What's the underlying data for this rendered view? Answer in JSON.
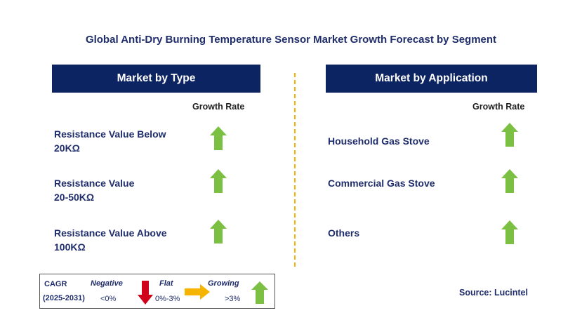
{
  "title": "Global Anti-Dry Burning Temperature Sensor Market Growth Forecast by Segment",
  "left_panel": {
    "header": "Market by Type",
    "growth_label": "Growth Rate",
    "items": [
      {
        "label_line1": "Resistance Value Below",
        "label_line2": "20KΩ",
        "trend": "growing"
      },
      {
        "label_line1": "Resistance Value",
        "label_line2": "20-50KΩ",
        "trend": "growing"
      },
      {
        "label_line1": "Resistance Value Above",
        "label_line2": "100KΩ",
        "trend": "growing"
      }
    ]
  },
  "right_panel": {
    "header": "Market by Application",
    "growth_label": "Growth Rate",
    "items": [
      {
        "label": "Household Gas Stove",
        "trend": "growing"
      },
      {
        "label": "Commercial Gas Stove",
        "trend": "growing"
      },
      {
        "label": "Others",
        "trend": "growing"
      }
    ]
  },
  "legend": {
    "cagr": "CAGR",
    "period": "(2025-2031)",
    "negative_label": "Negative",
    "negative_range": "<0%",
    "flat_label": "Flat",
    "flat_range": "0%-3%",
    "growing_label": "Growing",
    "growing_range": ">3%"
  },
  "source": "Source: Lucintel",
  "colors": {
    "header_bg": "#0d2462",
    "growing": "#7cc043",
    "negative": "#d0021b",
    "flat": "#f5b400",
    "divider": "#f0b400"
  }
}
